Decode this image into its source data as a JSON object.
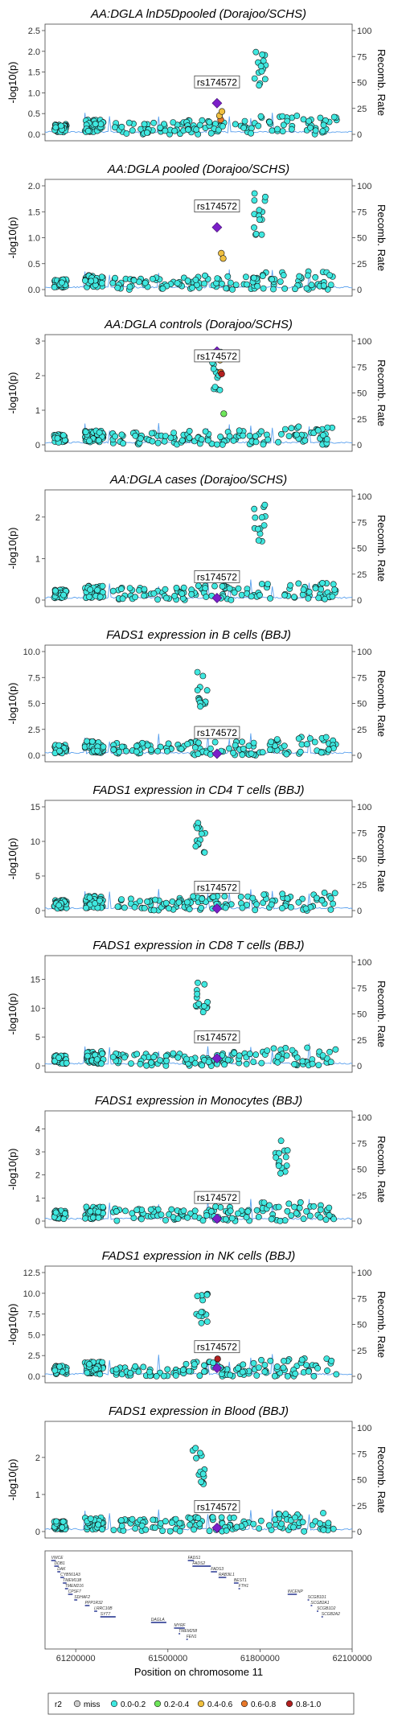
{
  "figure": {
    "xlabel": "Position on chromosome 11",
    "y_left_label": "-log10(p)",
    "y_right_label": "Recomb. Rate",
    "lead_snp": "rs174572",
    "legend": {
      "title": "r2",
      "items": [
        {
          "label": "miss",
          "color": "#cccccc"
        },
        {
          "label": "0.0-0.2",
          "color": "#3fe8e0"
        },
        {
          "label": "0.2-0.4",
          "color": "#6ee65a"
        },
        {
          "label": "0.4-0.6",
          "color": "#f0c040"
        },
        {
          "label": "0.6-0.8",
          "color": "#e8782a"
        },
        {
          "label": "0.8-1.0",
          "color": "#b22020"
        }
      ]
    },
    "lead_color": "#7b1fc8",
    "point_color": "#3fe8e0",
    "recomb_color": "#5aa0ee"
  },
  "chart_data": [
    {
      "type": "scatter",
      "title": "AA:DGLA lnD5Dpooled (Dorajoo/SCHS)",
      "ylim": [
        0,
        2.5
      ],
      "yticks": [
        "0.0",
        "0.5",
        "1.0",
        "1.5",
        "2.0",
        "2.5"
      ],
      "xlim": [
        61100000,
        62100000
      ],
      "xticks": [
        "61200000",
        "61500000",
        "61800000",
        "62100000"
      ],
      "y2ticks": [
        "0",
        "25",
        "50",
        "75",
        "100"
      ],
      "lead": {
        "x": 61660000,
        "y": 0.75
      },
      "peak": {
        "x": 61800000,
        "y": 2.0
      },
      "colored_points": [
        {
          "x": 61672000,
          "y": 0.35,
          "r2": "0.6-0.8"
        },
        {
          "x": 61668000,
          "y": 0.45,
          "r2": "0.4-0.6"
        },
        {
          "x": 61676000,
          "y": 0.55,
          "r2": "0.4-0.6"
        }
      ]
    },
    {
      "type": "scatter",
      "title": "AA:DGLA pooled (Dorajoo/SCHS)",
      "ylim": [
        0,
        2.0
      ],
      "yticks": [
        "0.0",
        "0.5",
        "1.0",
        "1.5",
        "2.0"
      ],
      "xlim": [
        61100000,
        62100000
      ],
      "xticks": [
        "61200000",
        "61500000",
        "61800000",
        "62100000"
      ],
      "y2ticks": [
        "0",
        "25",
        "50",
        "75",
        "100"
      ],
      "lead": {
        "x": 61660000,
        "y": 1.2
      },
      "peak": {
        "x": 61800000,
        "y": 1.9
      },
      "colored_points": [
        {
          "x": 61674000,
          "y": 0.7,
          "r2": "0.4-0.6"
        },
        {
          "x": 61680000,
          "y": 0.6,
          "r2": "0.4-0.6"
        }
      ]
    },
    {
      "type": "scatter",
      "title": "AA:DGLA controls (Dorajoo/SCHS)",
      "ylim": [
        0,
        3
      ],
      "yticks": [
        "0",
        "1",
        "2",
        "3"
      ],
      "xlim": [
        61100000,
        62100000
      ],
      "xticks": [
        "61200000",
        "61500000",
        "61800000",
        "62100000"
      ],
      "y2ticks": [
        "0",
        "25",
        "50",
        "75",
        "100"
      ],
      "lead": {
        "x": 61660000,
        "y": 2.7
      },
      "peak": {
        "x": 61660000,
        "y": 2.7
      },
      "colored_points": [
        {
          "x": 61670000,
          "y": 2.45,
          "r2": "0.4-0.6"
        },
        {
          "x": 61672000,
          "y": 2.1,
          "r2": "0.6-0.8"
        },
        {
          "x": 61675000,
          "y": 2.05,
          "r2": "0.8-1.0"
        },
        {
          "x": 61682000,
          "y": 0.9,
          "r2": "0.2-0.4"
        }
      ]
    },
    {
      "type": "scatter",
      "title": "AA:DGLA cases (Dorajoo/SCHS)",
      "ylim": [
        0,
        2.5
      ],
      "yticks": [
        "0",
        "1",
        "2"
      ],
      "xlim": [
        61100000,
        62100000
      ],
      "xticks": [
        "61200000",
        "61500000",
        "61800000",
        "62100000"
      ],
      "y2ticks": [
        "0",
        "25",
        "50",
        "75",
        "100"
      ],
      "lead": {
        "x": 61660000,
        "y": 0.05
      },
      "peak": {
        "x": 61800000,
        "y": 2.4
      },
      "colored_points": []
    },
    {
      "type": "scatter",
      "title": "FADS1 expression in B cells (BBJ)",
      "ylim": [
        0,
        10
      ],
      "yticks": [
        "0.0",
        "2.5",
        "5.0",
        "7.5",
        "10.0"
      ],
      "xlim": [
        61100000,
        62100000
      ],
      "xticks": [
        "61200000",
        "61500000",
        "61800000",
        "62100000"
      ],
      "y2ticks": [
        "0",
        "25",
        "50",
        "75",
        "100"
      ],
      "lead": {
        "x": 61660000,
        "y": 0.15
      },
      "peak": {
        "x": 61610000,
        "y": 8.2
      },
      "colored_points": []
    },
    {
      "type": "scatter",
      "title": "FADS1 expression in CD4 T cells (BBJ)",
      "ylim": [
        0,
        15
      ],
      "yticks": [
        "0",
        "5",
        "10",
        "15"
      ],
      "xlim": [
        61100000,
        62100000
      ],
      "xticks": [
        "61200000",
        "61500000",
        "61800000",
        "62100000"
      ],
      "y2ticks": [
        "0",
        "25",
        "50",
        "75",
        "100"
      ],
      "lead": {
        "x": 61660000,
        "y": 0.3
      },
      "peak": {
        "x": 61610000,
        "y": 13.0
      },
      "colored_points": []
    },
    {
      "type": "scatter",
      "title": "FADS1 expression in CD8 T cells (BBJ)",
      "ylim": [
        0,
        18
      ],
      "yticks": [
        "0",
        "5",
        "10",
        "15"
      ],
      "xlim": [
        61100000,
        62100000
      ],
      "xticks": [
        "61200000",
        "61500000",
        "61800000",
        "62100000"
      ],
      "y2ticks": [
        "0",
        "25",
        "50",
        "75",
        "100"
      ],
      "lead": {
        "x": 61660000,
        "y": 1.3
      },
      "peak": {
        "x": 61610000,
        "y": 14.8
      },
      "colored_points": []
    },
    {
      "type": "scatter",
      "title": "FADS1 expression in Monocytes (BBJ)",
      "ylim": [
        0,
        4.5
      ],
      "yticks": [
        "0",
        "1",
        "2",
        "3",
        "4"
      ],
      "xlim": [
        61100000,
        62100000
      ],
      "xticks": [
        "61200000",
        "61500000",
        "61800000",
        "62100000"
      ],
      "y2ticks": [
        "0",
        "25",
        "50",
        "75",
        "100"
      ],
      "lead": {
        "x": 61660000,
        "y": 0.1
      },
      "peak": {
        "x": 61870000,
        "y": 3.6
      },
      "colored_points": []
    },
    {
      "type": "scatter",
      "title": "FADS1 expression in NK cells (BBJ)",
      "ylim": [
        0,
        12.5
      ],
      "yticks": [
        "0.0",
        "2.5",
        "5.0",
        "7.5",
        "10.0",
        "12.5"
      ],
      "xlim": [
        61100000,
        62100000
      ],
      "xticks": [
        "61200000",
        "61500000",
        "61800000",
        "62100000"
      ],
      "y2ticks": [
        "0",
        "25",
        "50",
        "75",
        "100"
      ],
      "lead": {
        "x": 61660000,
        "y": 1.0
      },
      "peak": {
        "x": 61610000,
        "y": 10.3
      },
      "colored_points": [
        {
          "x": 61662000,
          "y": 2.1,
          "r2": "0.8-1.0"
        }
      ]
    },
    {
      "type": "scatter",
      "title": "FADS1 expression in Blood (BBJ)",
      "ylim": [
        0,
        2.8
      ],
      "yticks": [
        "0",
        "1",
        "2"
      ],
      "xlim": [
        61100000,
        62100000
      ],
      "xticks": [
        "61200000",
        "61500000",
        "61800000",
        "62100000"
      ],
      "y2ticks": [
        "0",
        "25",
        "50",
        "75",
        "100"
      ],
      "lead": {
        "x": 61660000,
        "y": 0.1
      },
      "peak": {
        "x": 61600000,
        "y": 2.3
      },
      "colored_points": []
    }
  ],
  "genes": [
    {
      "name": "VWCE",
      "start": 61120000,
      "end": 61135000,
      "row": 0
    },
    {
      "name": "DDB1",
      "start": 61130000,
      "end": 61145000,
      "row": 1
    },
    {
      "name": "DAK",
      "start": 61140000,
      "end": 61150000,
      "row": 2
    },
    {
      "name": "CYB561A3",
      "start": 61150000,
      "end": 61162000,
      "row": 3
    },
    {
      "name": "TMEM138",
      "start": 61158000,
      "end": 61170000,
      "row": 4
    },
    {
      "name": "TMEM216",
      "start": 61165000,
      "end": 61175000,
      "row": 5
    },
    {
      "name": "CPSF7",
      "start": 61175000,
      "end": 61190000,
      "row": 6
    },
    {
      "name": "SDHAF2",
      "start": 61195000,
      "end": 61205000,
      "row": 7
    },
    {
      "name": "PPP1R32",
      "start": 61230000,
      "end": 61245000,
      "row": 8
    },
    {
      "name": "LRRC10B",
      "start": 61260000,
      "end": 61270000,
      "row": 9
    },
    {
      "name": "SYT7",
      "start": 61280000,
      "end": 61330000,
      "row": 10
    },
    {
      "name": "DAGLA",
      "start": 61445000,
      "end": 61495000,
      "row": 11
    },
    {
      "name": "MYRF",
      "start": 61520000,
      "end": 61555000,
      "row": 12
    },
    {
      "name": "TMEM258",
      "start": 61535000,
      "end": 61540000,
      "row": 13
    },
    {
      "name": "FEN1",
      "start": 61560000,
      "end": 61565000,
      "row": 14
    },
    {
      "name": "FADS1",
      "start": 61565000,
      "end": 61585000,
      "row": 0
    },
    {
      "name": "FADS2",
      "start": 61580000,
      "end": 61640000,
      "row": 1
    },
    {
      "name": "FADS3",
      "start": 61640000,
      "end": 61660000,
      "row": 2
    },
    {
      "name": "RAB3IL1",
      "start": 61665000,
      "end": 61690000,
      "row": 3
    },
    {
      "name": "BEST1",
      "start": 61715000,
      "end": 61730000,
      "row": 4
    },
    {
      "name": "FTH1",
      "start": 61730000,
      "end": 61735000,
      "row": 5
    },
    {
      "name": "INCENP",
      "start": 61890000,
      "end": 61920000,
      "row": 6
    },
    {
      "name": "SCGB1D1",
      "start": 61955000,
      "end": 61960000,
      "row": 7
    },
    {
      "name": "SCGB2A1",
      "start": 61965000,
      "end": 61970000,
      "row": 8
    },
    {
      "name": "SCGB1D2",
      "start": 61985000,
      "end": 61990000,
      "row": 9
    },
    {
      "name": "SCGB2A2",
      "start": 62000000,
      "end": 62005000,
      "row": 10
    }
  ]
}
